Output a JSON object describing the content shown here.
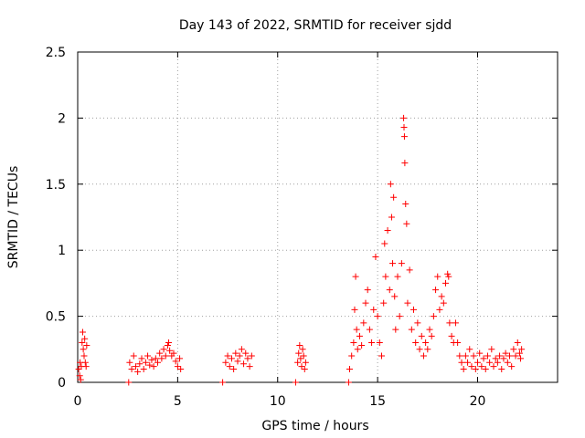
{
  "chart_data": {
    "type": "scatter",
    "title": "Day 143 of 2022, SRMTID for receiver sjdd",
    "xlabel": "GPS time / hours",
    "ylabel": "SRMTID / TECUs",
    "xlim": [
      0,
      24
    ],
    "ylim": [
      0,
      2.5
    ],
    "xticks": [
      0,
      5,
      10,
      15,
      20
    ],
    "yticks": [
      0,
      0.5,
      1,
      1.5,
      2,
      2.5
    ],
    "ytick_labels": [
      "0",
      "0.5",
      "1",
      "1.5",
      "2",
      "2.5"
    ],
    "grid": true,
    "marker": "+",
    "color": "#ff0000",
    "series": [
      {
        "name": "SRMTID",
        "points": [
          [
            0.05,
            0.1
          ],
          [
            0.1,
            0.05
          ],
          [
            0.12,
            0.15
          ],
          [
            0.15,
            0.02
          ],
          [
            0.18,
            0.12
          ],
          [
            0.22,
            0.3
          ],
          [
            0.25,
            0.38
          ],
          [
            0.28,
            0.25
          ],
          [
            0.32,
            0.2
          ],
          [
            0.35,
            0.33
          ],
          [
            0.38,
            0.15
          ],
          [
            0.42,
            0.12
          ],
          [
            0.45,
            0.28
          ],
          [
            2.55,
            0.0
          ],
          [
            2.6,
            0.15
          ],
          [
            2.7,
            0.1
          ],
          [
            2.8,
            0.2
          ],
          [
            2.9,
            0.12
          ],
          [
            3.0,
            0.08
          ],
          [
            3.1,
            0.14
          ],
          [
            3.2,
            0.18
          ],
          [
            3.3,
            0.1
          ],
          [
            3.4,
            0.15
          ],
          [
            3.5,
            0.2
          ],
          [
            3.6,
            0.13
          ],
          [
            3.7,
            0.17
          ],
          [
            3.8,
            0.12
          ],
          [
            3.9,
            0.18
          ],
          [
            4.0,
            0.15
          ],
          [
            4.1,
            0.22
          ],
          [
            4.2,
            0.18
          ],
          [
            4.3,
            0.25
          ],
          [
            4.4,
            0.2
          ],
          [
            4.5,
            0.28
          ],
          [
            4.55,
            0.3
          ],
          [
            4.6,
            0.24
          ],
          [
            4.7,
            0.2
          ],
          [
            4.8,
            0.22
          ],
          [
            4.9,
            0.16
          ],
          [
            5.0,
            0.12
          ],
          [
            5.1,
            0.18
          ],
          [
            5.15,
            0.1
          ],
          [
            7.25,
            0.0
          ],
          [
            7.4,
            0.15
          ],
          [
            7.5,
            0.2
          ],
          [
            7.6,
            0.12
          ],
          [
            7.7,
            0.18
          ],
          [
            7.8,
            0.1
          ],
          [
            7.9,
            0.22
          ],
          [
            8.0,
            0.16
          ],
          [
            8.1,
            0.2
          ],
          [
            8.2,
            0.25
          ],
          [
            8.3,
            0.14
          ],
          [
            8.4,
            0.22
          ],
          [
            8.5,
            0.18
          ],
          [
            8.6,
            0.12
          ],
          [
            8.7,
            0.2
          ],
          [
            10.9,
            0.0
          ],
          [
            11.0,
            0.15
          ],
          [
            11.05,
            0.22
          ],
          [
            11.1,
            0.28
          ],
          [
            11.15,
            0.18
          ],
          [
            11.2,
            0.12
          ],
          [
            11.25,
            0.25
          ],
          [
            11.3,
            0.2
          ],
          [
            11.35,
            0.1
          ],
          [
            11.4,
            0.15
          ],
          [
            13.55,
            0.0
          ],
          [
            13.6,
            0.1
          ],
          [
            13.7,
            0.2
          ],
          [
            13.8,
            0.3
          ],
          [
            13.85,
            0.55
          ],
          [
            13.9,
            0.8
          ],
          [
            13.95,
            0.4
          ],
          [
            14.0,
            0.25
          ],
          [
            14.1,
            0.35
          ],
          [
            14.2,
            0.28
          ],
          [
            14.3,
            0.45
          ],
          [
            14.4,
            0.6
          ],
          [
            14.5,
            0.7
          ],
          [
            14.6,
            0.4
          ],
          [
            14.7,
            0.3
          ],
          [
            14.8,
            0.55
          ],
          [
            14.9,
            0.95
          ],
          [
            15.0,
            0.5
          ],
          [
            15.1,
            0.3
          ],
          [
            15.2,
            0.2
          ],
          [
            15.3,
            0.6
          ],
          [
            15.35,
            1.05
          ],
          [
            15.4,
            0.8
          ],
          [
            15.5,
            1.15
          ],
          [
            15.6,
            0.7
          ],
          [
            15.65,
            1.5
          ],
          [
            15.7,
            1.25
          ],
          [
            15.75,
            0.9
          ],
          [
            15.8,
            1.4
          ],
          [
            15.85,
            0.65
          ],
          [
            15.9,
            0.4
          ],
          [
            16.0,
            0.8
          ],
          [
            16.1,
            0.5
          ],
          [
            16.2,
            0.9
          ],
          [
            16.3,
            2.0
          ],
          [
            16.32,
            1.93
          ],
          [
            16.34,
            1.86
          ],
          [
            16.36,
            1.66
          ],
          [
            16.4,
            1.35
          ],
          [
            16.45,
            1.2
          ],
          [
            16.5,
            0.6
          ],
          [
            16.6,
            0.85
          ],
          [
            16.7,
            0.4
          ],
          [
            16.8,
            0.55
          ],
          [
            16.9,
            0.3
          ],
          [
            17.0,
            0.45
          ],
          [
            17.1,
            0.25
          ],
          [
            17.2,
            0.35
          ],
          [
            17.3,
            0.2
          ],
          [
            17.4,
            0.3
          ],
          [
            17.5,
            0.25
          ],
          [
            17.6,
            0.4
          ],
          [
            17.7,
            0.35
          ],
          [
            17.8,
            0.5
          ],
          [
            17.9,
            0.7
          ],
          [
            18.0,
            0.8
          ],
          [
            18.1,
            0.55
          ],
          [
            18.2,
            0.65
          ],
          [
            18.3,
            0.6
          ],
          [
            18.4,
            0.75
          ],
          [
            18.5,
            0.82
          ],
          [
            18.55,
            0.8
          ],
          [
            18.6,
            0.45
          ],
          [
            18.7,
            0.35
          ],
          [
            18.8,
            0.3
          ],
          [
            18.9,
            0.45
          ],
          [
            19.0,
            0.3
          ],
          [
            19.1,
            0.2
          ],
          [
            19.2,
            0.15
          ],
          [
            19.3,
            0.1
          ],
          [
            19.4,
            0.2
          ],
          [
            19.5,
            0.15
          ],
          [
            19.6,
            0.25
          ],
          [
            19.7,
            0.12
          ],
          [
            19.8,
            0.2
          ],
          [
            19.9,
            0.1
          ],
          [
            20.0,
            0.15
          ],
          [
            20.1,
            0.22
          ],
          [
            20.2,
            0.12
          ],
          [
            20.3,
            0.18
          ],
          [
            20.4,
            0.1
          ],
          [
            20.5,
            0.2
          ],
          [
            20.6,
            0.15
          ],
          [
            20.7,
            0.25
          ],
          [
            20.8,
            0.12
          ],
          [
            20.9,
            0.18
          ],
          [
            21.0,
            0.15
          ],
          [
            21.1,
            0.2
          ],
          [
            21.2,
            0.1
          ],
          [
            21.3,
            0.18
          ],
          [
            21.4,
            0.22
          ],
          [
            21.5,
            0.15
          ],
          [
            21.6,
            0.2
          ],
          [
            21.7,
            0.12
          ],
          [
            21.8,
            0.25
          ],
          [
            21.9,
            0.2
          ],
          [
            22.0,
            0.3
          ],
          [
            22.1,
            0.22
          ],
          [
            22.15,
            0.18
          ],
          [
            22.2,
            0.25
          ]
        ]
      }
    ]
  }
}
